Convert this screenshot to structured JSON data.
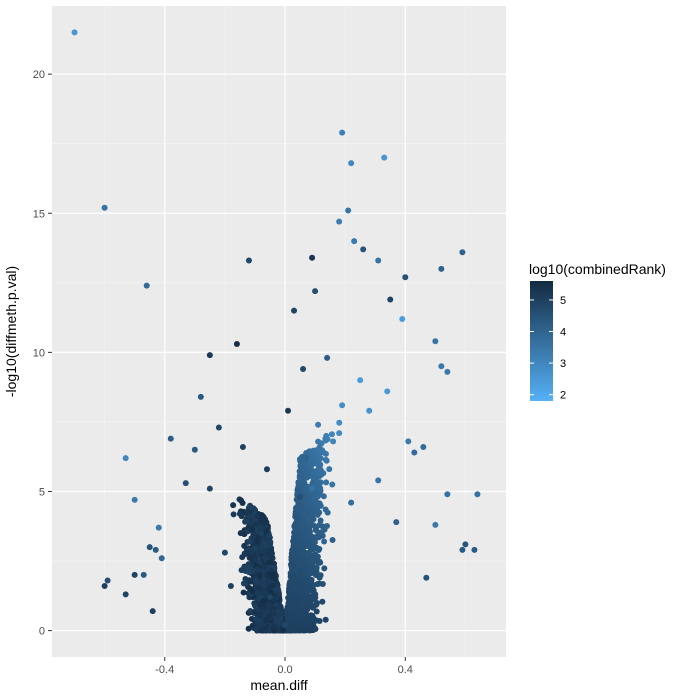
{
  "chart_data": {
    "type": "scatter",
    "xlabel": "mean.diff",
    "ylabel": "-log10(diffmeth.p.val)",
    "xlim": [
      -0.775,
      0.735
    ],
    "ylim": [
      -0.95,
      22.45
    ],
    "x_ticks": [
      -0.4,
      0.0,
      0.4
    ],
    "x_tick_labels": [
      "-0.4",
      "0.0",
      "0.4"
    ],
    "y_ticks": [
      0,
      5,
      10,
      15,
      20
    ],
    "y_tick_labels": [
      "0",
      "5",
      "10",
      "15",
      "20"
    ],
    "grid": true,
    "legend": {
      "title": "log10(combinedRank)",
      "placement": "right",
      "range": [
        1.8,
        5.6
      ],
      "breaks": [
        2,
        3,
        4,
        5
      ],
      "break_labels": [
        "2",
        "3",
        "4",
        "5"
      ],
      "color_low": "#56B1F7",
      "color_high": "#132B43"
    },
    "colors": {
      "panel_background": "#EBEBEB",
      "grid_major": "#FFFFFF",
      "grid_minor": "#F5F5F5"
    },
    "outlier_points": [
      {
        "x": -0.7,
        "y": 21.5,
        "c": 2.6
      },
      {
        "x": -0.6,
        "y": 15.2,
        "c": 3.6
      },
      {
        "x": -0.46,
        "y": 12.4,
        "c": 3.8
      },
      {
        "x": -0.53,
        "y": 6.2,
        "c": 3.0
      },
      {
        "x": -0.5,
        "y": 4.7,
        "c": 3.4
      },
      {
        "x": -0.42,
        "y": 3.7,
        "c": 3.4
      },
      {
        "x": -0.38,
        "y": 6.9,
        "c": 4.2
      },
      {
        "x": -0.33,
        "y": 5.3,
        "c": 4.6
      },
      {
        "x": -0.3,
        "y": 6.5,
        "c": 4.3
      },
      {
        "x": -0.28,
        "y": 8.4,
        "c": 4.3
      },
      {
        "x": -0.25,
        "y": 9.9,
        "c": 5.2
      },
      {
        "x": -0.16,
        "y": 10.3,
        "c": 5.5
      },
      {
        "x": -0.12,
        "y": 13.3,
        "c": 4.8
      },
      {
        "x": 0.09,
        "y": 13.4,
        "c": 5.3
      },
      {
        "x": 0.1,
        "y": 12.2,
        "c": 4.6
      },
      {
        "x": 0.03,
        "y": 11.5,
        "c": 4.9
      },
      {
        "x": 0.19,
        "y": 17.9,
        "c": 3.2
      },
      {
        "x": 0.21,
        "y": 15.1,
        "c": 3.5
      },
      {
        "x": 0.22,
        "y": 16.8,
        "c": 3.0
      },
      {
        "x": 0.33,
        "y": 17.0,
        "c": 2.6
      },
      {
        "x": 0.18,
        "y": 14.7,
        "c": 3.3
      },
      {
        "x": 0.23,
        "y": 14.0,
        "c": 3.4
      },
      {
        "x": 0.26,
        "y": 13.7,
        "c": 4.4
      },
      {
        "x": 0.31,
        "y": 13.3,
        "c": 3.6
      },
      {
        "x": 0.4,
        "y": 12.7,
        "c": 4.5
      },
      {
        "x": 0.52,
        "y": 13.0,
        "c": 4.0
      },
      {
        "x": 0.59,
        "y": 13.6,
        "c": 4.0
      },
      {
        "x": 0.52,
        "y": 9.5,
        "c": 3.4
      },
      {
        "x": 0.54,
        "y": 9.3,
        "c": 3.4
      },
      {
        "x": 0.5,
        "y": 10.4,
        "c": 3.5
      },
      {
        "x": 0.39,
        "y": 11.2,
        "c": 2.4
      },
      {
        "x": 0.35,
        "y": 11.9,
        "c": 4.9
      },
      {
        "x": 0.64,
        "y": 4.9,
        "c": 3.6
      },
      {
        "x": 0.54,
        "y": 4.9,
        "c": 3.6
      },
      {
        "x": 0.6,
        "y": 3.1,
        "c": 4.4
      },
      {
        "x": 0.63,
        "y": 2.9,
        "c": 4.3
      },
      {
        "x": 0.59,
        "y": 2.9,
        "c": 4.3
      },
      {
        "x": 0.5,
        "y": 3.8,
        "c": 3.4
      },
      {
        "x": 0.46,
        "y": 6.6,
        "c": 3.8
      },
      {
        "x": 0.41,
        "y": 6.8,
        "c": 3.4
      },
      {
        "x": 0.43,
        "y": 6.4,
        "c": 3.8
      },
      {
        "x": 0.47,
        "y": 1.9,
        "c": 4.5
      },
      {
        "x": -0.6,
        "y": 1.6,
        "c": 5.0
      },
      {
        "x": -0.59,
        "y": 1.8,
        "c": 4.6
      },
      {
        "x": -0.53,
        "y": 1.3,
        "c": 4.9
      },
      {
        "x": -0.5,
        "y": 2.0,
        "c": 4.9
      },
      {
        "x": -0.47,
        "y": 2.0,
        "c": 4.3
      },
      {
        "x": -0.45,
        "y": 3.0,
        "c": 4.5
      },
      {
        "x": -0.43,
        "y": 2.9,
        "c": 4.3
      },
      {
        "x": -0.41,
        "y": 2.6,
        "c": 3.9
      },
      {
        "x": -0.44,
        "y": 0.7,
        "c": 5.0
      }
    ],
    "bulk_points": [
      {
        "x": -0.2,
        "y": 2.8,
        "c": 4.8
      },
      {
        "x": -0.18,
        "y": 1.6,
        "c": 5.0
      },
      {
        "x": -0.15,
        "y": 4.2,
        "c": 5.2
      },
      {
        "x": -0.12,
        "y": 2.1,
        "c": 4.9
      },
      {
        "x": -0.1,
        "y": 0.9,
        "c": 5.1
      },
      {
        "x": -0.08,
        "y": 3.5,
        "c": 5.0
      },
      {
        "x": -0.05,
        "y": 1.2,
        "c": 4.9
      },
      {
        "x": -0.03,
        "y": 0.4,
        "c": 5.1
      },
      {
        "x": 0.0,
        "y": 0.2,
        "c": 4.8
      },
      {
        "x": 0.03,
        "y": 1.5,
        "c": 4.7
      },
      {
        "x": 0.05,
        "y": 4.8,
        "c": 4.6
      },
      {
        "x": 0.07,
        "y": 6.2,
        "c": 4.0
      },
      {
        "x": 0.09,
        "y": 5.1,
        "c": 3.6
      },
      {
        "x": 0.11,
        "y": 7.4,
        "c": 3.3
      },
      {
        "x": 0.13,
        "y": 3.2,
        "c": 3.9
      },
      {
        "x": 0.16,
        "y": 6.8,
        "c": 3.1
      },
      {
        "x": 0.19,
        "y": 8.1,
        "c": 2.8
      },
      {
        "x": 0.22,
        "y": 4.6,
        "c": 3.7
      },
      {
        "x": 0.25,
        "y": 9.0,
        "c": 2.4
      },
      {
        "x": 0.28,
        "y": 7.9,
        "c": 2.7
      },
      {
        "x": 0.31,
        "y": 5.4,
        "c": 3.5
      },
      {
        "x": 0.34,
        "y": 8.6,
        "c": 2.5
      },
      {
        "x": 0.37,
        "y": 3.9,
        "c": 4.1
      },
      {
        "x": -0.25,
        "y": 5.1,
        "c": 4.9
      },
      {
        "x": -0.22,
        "y": 7.3,
        "c": 4.8
      },
      {
        "x": -0.14,
        "y": 6.6,
        "c": 5.0
      },
      {
        "x": -0.06,
        "y": 5.8,
        "c": 5.1
      },
      {
        "x": 0.01,
        "y": 7.9,
        "c": 5.2
      },
      {
        "x": 0.06,
        "y": 9.4,
        "c": 4.8
      },
      {
        "x": 0.14,
        "y": 9.8,
        "c": 4.2
      }
    ]
  }
}
